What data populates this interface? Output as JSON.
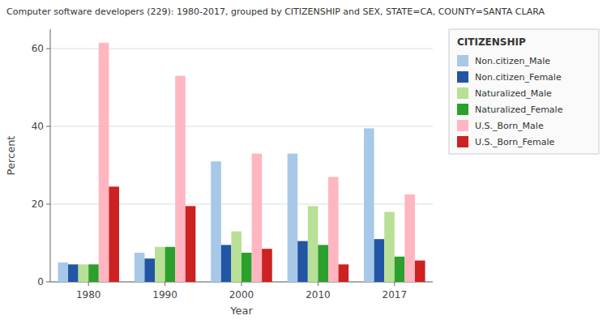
{
  "chart_data": {
    "type": "bar",
    "title": "Computer software developers (229): 1980-2017, grouped by CITIZENSHIP and SEX, STATE=CA, COUNTY=SANTA CLARA",
    "x_label": "Year",
    "y_label": "Percent",
    "legend_title": "CITIZENSHIP",
    "categories": [
      "1980",
      "1990",
      "2000",
      "2010",
      "2017"
    ],
    "series": [
      {
        "name": "Non.citizen_Male",
        "color": "#a8c8e8",
        "values": [
          5.0,
          7.5,
          31.0,
          33.0,
          39.5
        ]
      },
      {
        "name": "Non.citizen_Female",
        "color": "#2255a4",
        "values": [
          4.5,
          6.0,
          9.5,
          10.5,
          11.0
        ]
      },
      {
        "name": "Naturalized_Male",
        "color": "#b8e096",
        "values": [
          4.5,
          9.0,
          13.0,
          19.5,
          18.0
        ]
      },
      {
        "name": "Naturalized_Female",
        "color": "#2ca02c",
        "values": [
          4.5,
          9.0,
          7.5,
          9.5,
          6.5
        ]
      },
      {
        "name": "U.S._Born_Male",
        "color": "#ffb6c1",
        "values": [
          61.5,
          53.0,
          33.0,
          27.0,
          22.5
        ]
      },
      {
        "name": "U.S._Born_Female",
        "color": "#cc2222",
        "values": [
          24.5,
          19.5,
          8.5,
          4.5,
          5.5
        ]
      }
    ],
    "ylim": [
      0,
      65
    ],
    "yticks": [
      0,
      20,
      40,
      60
    ],
    "grid": true,
    "legend": "right"
  }
}
